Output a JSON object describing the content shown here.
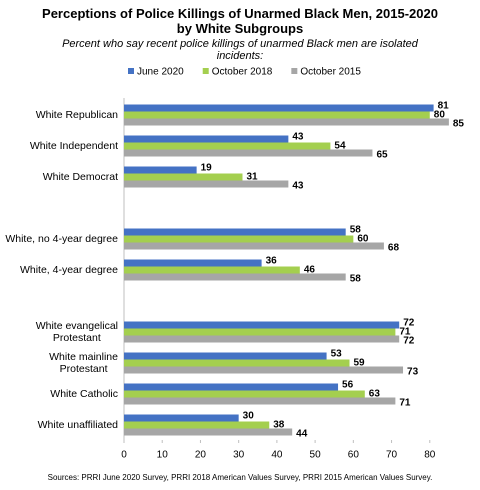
{
  "chart_data": {
    "type": "bar",
    "orientation": "horizontal",
    "title": "Perceptions of Police Killings of Unarmed Black Men, 2015-2020\nby White Subgroups",
    "subtitle": "Percent who say recent police killings of unarmed Black men are isolated incidents:",
    "source": "Sources: PRRI June 2020 Survey, PRRI 2018 American Values Survey, PRRI 2015 American Values Survey.",
    "categories": [
      "White Republican",
      "White Independent",
      "White Democrat",
      null,
      "White, no 4-year degree",
      "White, 4-year degree",
      null,
      "White evangelical\nProtestant",
      "White mainline\nProtestant",
      "White Catholic",
      "White unaffiliated"
    ],
    "series": [
      {
        "name": "June 2020",
        "color": "#4472c4",
        "values": [
          81,
          43,
          19,
          null,
          58,
          36,
          null,
          72,
          53,
          56,
          30
        ]
      },
      {
        "name": "October 2018",
        "color": "#a4cf4f",
        "values": [
          80,
          54,
          31,
          null,
          60,
          46,
          null,
          71,
          59,
          63,
          38
        ]
      },
      {
        "name": "October 2015",
        "color": "#a6a6a6",
        "values": [
          85,
          65,
          43,
          null,
          68,
          58,
          null,
          72,
          73,
          71,
          44
        ]
      }
    ],
    "xlim": [
      0,
      90
    ],
    "xticks": [
      0,
      10,
      20,
      30,
      40,
      50,
      60,
      70,
      80
    ],
    "legend": "top"
  }
}
